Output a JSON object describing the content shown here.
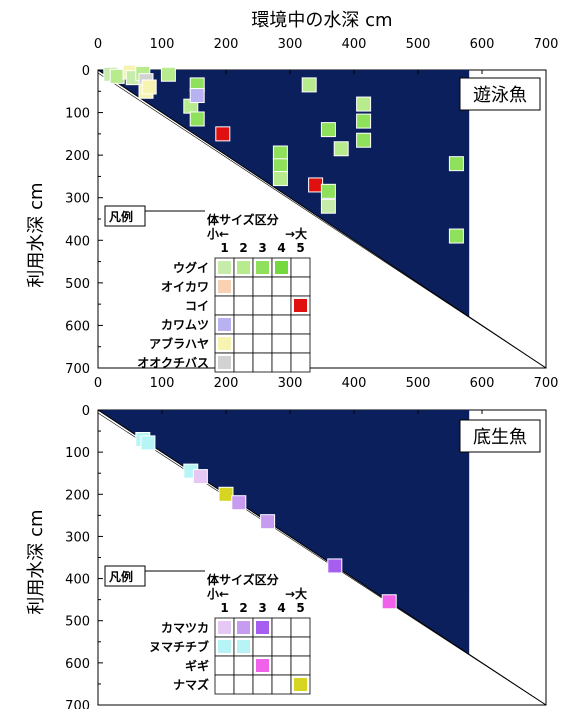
{
  "x_axis_title": "環境中の水深 cm",
  "y_axis_title": "利用水深 cm",
  "colors": {
    "environment_fill": "#0b1f5c",
    "ugui": [
      "#c7ebaa",
      "#b8ea8e",
      "#8fe05a",
      "#73d93f"
    ],
    "oikawa": "#f9d2b6",
    "koi": "#e01010",
    "kawamutsu": "#b8b3f0",
    "aburahaya": "#f7f3b0",
    "ookuchibasu": "#d2d2d2",
    "kamatsuka": [
      "#e6c8f5",
      "#c79bf0",
      "#a55ef0"
    ],
    "numachichibu": "#b6f4f6",
    "gigi": "#f062e9",
    "namazu": "#d5d522"
  },
  "chart_data": [
    {
      "type": "scatter",
      "title": "遊泳魚",
      "xlabel": "環境中の水深 cm",
      "ylabel": "利用水深 cm",
      "xlim": [
        0,
        700
      ],
      "ylim": [
        700,
        0
      ],
      "x_ticks": [
        0,
        100,
        200,
        300,
        400,
        500,
        600,
        700
      ],
      "y_ticks": [
        0,
        100,
        200,
        300,
        400,
        500,
        600,
        700
      ],
      "environment_max_depth": 580,
      "legend": {
        "title": "凡例",
        "size_header": "体サイズ区分",
        "size_small": "小←",
        "size_large": "→大",
        "size_numbers": [
          "1",
          "2",
          "3",
          "4",
          "5"
        ],
        "rows": [
          {
            "name": "ウグイ",
            "cells": [
              1,
              2,
              3,
              4
            ]
          },
          {
            "name": "オイカワ",
            "cells": [
              1
            ]
          },
          {
            "name": "コイ",
            "cells": [
              5
            ]
          },
          {
            "name": "カワムツ",
            "cells": [
              1
            ]
          },
          {
            "name": "アブラハヤ",
            "cells": [
              1
            ]
          },
          {
            "name": "オオクチバス",
            "cells": [
              1
            ]
          }
        ]
      },
      "points": [
        {
          "x": 20,
          "y": 10,
          "species": "ウグイ",
          "size": 1
        },
        {
          "x": 30,
          "y": 15,
          "species": "ウグイ",
          "size": 2
        },
        {
          "x": 50,
          "y": 5,
          "species": "アブラハヤ",
          "size": 1
        },
        {
          "x": 55,
          "y": 18,
          "species": "ウグイ",
          "size": 1
        },
        {
          "x": 70,
          "y": 8,
          "species": "ウグイ",
          "size": 2
        },
        {
          "x": 75,
          "y": 25,
          "species": "オオクチバス",
          "size": 1
        },
        {
          "x": 75,
          "y": 50,
          "species": "アブラハヤ",
          "size": 1
        },
        {
          "x": 80,
          "y": 40,
          "species": "アブラハヤ",
          "size": 1
        },
        {
          "x": 110,
          "y": 10,
          "species": "ウグイ",
          "size": 2
        },
        {
          "x": 145,
          "y": 85,
          "species": "ウグイ",
          "size": 2
        },
        {
          "x": 155,
          "y": 35,
          "species": "ウグイ",
          "size": 3
        },
        {
          "x": 155,
          "y": 60,
          "species": "カワムツ",
          "size": 1
        },
        {
          "x": 155,
          "y": 115,
          "species": "ウグイ",
          "size": 3
        },
        {
          "x": 195,
          "y": 150,
          "species": "コイ",
          "size": 5
        },
        {
          "x": 285,
          "y": 195,
          "species": "ウグイ",
          "size": 3
        },
        {
          "x": 285,
          "y": 225,
          "species": "ウグイ",
          "size": 3
        },
        {
          "x": 285,
          "y": 255,
          "species": "ウグイ",
          "size": 2
        },
        {
          "x": 330,
          "y": 35,
          "species": "ウグイ",
          "size": 2
        },
        {
          "x": 340,
          "y": 270,
          "species": "コイ",
          "size": 5
        },
        {
          "x": 360,
          "y": 140,
          "species": "ウグイ",
          "size": 3
        },
        {
          "x": 360,
          "y": 285,
          "species": "ウグイ",
          "size": 3
        },
        {
          "x": 360,
          "y": 320,
          "species": "ウグイ",
          "size": 1
        },
        {
          "x": 380,
          "y": 185,
          "species": "ウグイ",
          "size": 2
        },
        {
          "x": 415,
          "y": 80,
          "species": "ウグイ",
          "size": 2
        },
        {
          "x": 415,
          "y": 120,
          "species": "ウグイ",
          "size": 3
        },
        {
          "x": 415,
          "y": 165,
          "species": "ウグイ",
          "size": 3
        },
        {
          "x": 560,
          "y": 220,
          "species": "ウグイ",
          "size": 3
        },
        {
          "x": 560,
          "y": 390,
          "species": "ウグイ",
          "size": 3
        }
      ]
    },
    {
      "type": "scatter",
      "title": "底生魚",
      "xlabel": "環境中の水深 cm",
      "ylabel": "利用水深 cm",
      "xlim": [
        0,
        700
      ],
      "ylim": [
        700,
        0
      ],
      "x_ticks": [
        0,
        100,
        200,
        300,
        400,
        500,
        600,
        700
      ],
      "y_ticks": [
        0,
        100,
        200,
        300,
        400,
        500,
        600,
        700
      ],
      "environment_max_depth": 580,
      "legend": {
        "title": "凡例",
        "size_header": "体サイズ区分",
        "size_small": "小←",
        "size_large": "→大",
        "size_numbers": [
          "1",
          "2",
          "3",
          "4",
          "5"
        ],
        "rows": [
          {
            "name": "カマツカ",
            "cells": [
              1,
              2,
              3
            ]
          },
          {
            "name": "ヌマチチブ",
            "cells": [
              1,
              2
            ]
          },
          {
            "name": "ギギ",
            "cells": [
              3
            ]
          },
          {
            "name": "ナマズ",
            "cells": [
              5
            ]
          }
        ]
      },
      "points": [
        {
          "x": 70,
          "y": 70,
          "species": "ヌマチチブ",
          "size": 1
        },
        {
          "x": 78,
          "y": 78,
          "species": "ヌマチチブ",
          "size": 2
        },
        {
          "x": 145,
          "y": 145,
          "species": "ヌマチチブ",
          "size": 1
        },
        {
          "x": 160,
          "y": 158,
          "species": "カマツカ",
          "size": 1
        },
        {
          "x": 200,
          "y": 200,
          "species": "ナマズ",
          "size": 5
        },
        {
          "x": 220,
          "y": 220,
          "species": "カマツカ",
          "size": 2
        },
        {
          "x": 265,
          "y": 265,
          "species": "カマツカ",
          "size": 2
        },
        {
          "x": 370,
          "y": 370,
          "species": "カマツカ",
          "size": 3
        },
        {
          "x": 455,
          "y": 455,
          "species": "ギギ",
          "size": 3
        }
      ]
    }
  ]
}
